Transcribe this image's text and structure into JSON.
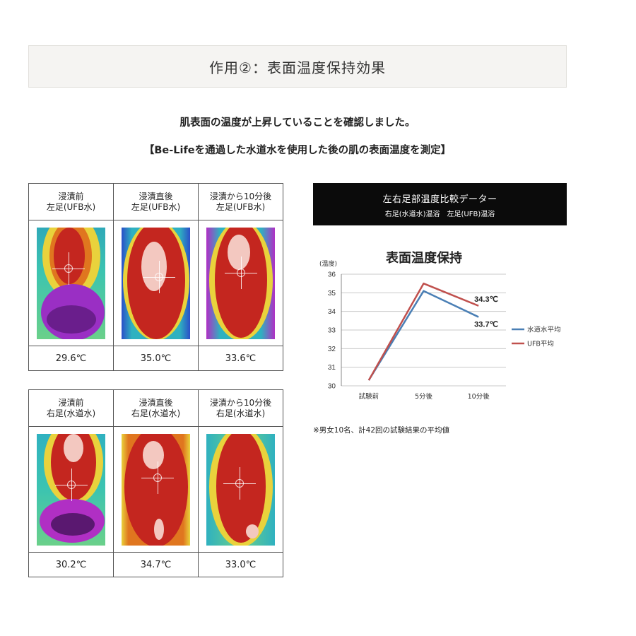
{
  "header": {
    "title": "作用②：表面温度保持効果"
  },
  "lead": {
    "line1": "肌表面の温度が上昇していることを確認しました。",
    "line2": "【Be-Lifeを通過した水道水を使用した後の肌の表面温度を測定】"
  },
  "left_foot": {
    "conditions": [
      {
        "line1": "浸漬前",
        "line2": "左足(UFB水)",
        "temp": "29.6℃"
      },
      {
        "line1": "浸漬直後",
        "line2": "左足(UFB水)",
        "temp": "35.0℃"
      },
      {
        "line1": "浸漬から10分後",
        "line2": "左足(UFB水)",
        "temp": "33.6℃"
      }
    ]
  },
  "right_foot": {
    "conditions": [
      {
        "line1": "浸漬前",
        "line2": "右足(水道水)",
        "temp": "30.2℃"
      },
      {
        "line1": "浸漬直後",
        "line2": "右足(水道水)",
        "temp": "34.7℃"
      },
      {
        "line1": "浸漬から10分後",
        "line2": "右足(水道水)",
        "temp": "33.0℃"
      }
    ]
  },
  "chart_banner": {
    "title": "左右足部温度比較データー",
    "subtitle": "右足(水道水)温浴　左足(UFB)温浴"
  },
  "chart_data": {
    "type": "line",
    "title": "表面温度保持",
    "ylabel": "(温度)",
    "xlabel": "",
    "categories": [
      "試験前",
      "5分後",
      "10分後"
    ],
    "ylim": [
      30,
      36
    ],
    "yticks": [
      30,
      31,
      32,
      33,
      34,
      35,
      36
    ],
    "grid": true,
    "legend": "right",
    "series": [
      {
        "name": "水道水平均",
        "color": "#4a7fb5",
        "values": [
          30.3,
          35.1,
          33.7
        ],
        "end_label": "33.7℃"
      },
      {
        "name": "UFB平均",
        "color": "#c0504d",
        "values": [
          30.3,
          35.5,
          34.3
        ],
        "end_label": "34.3℃"
      }
    ]
  },
  "footnote": "※男女10名、計42回の試験結果の平均値"
}
